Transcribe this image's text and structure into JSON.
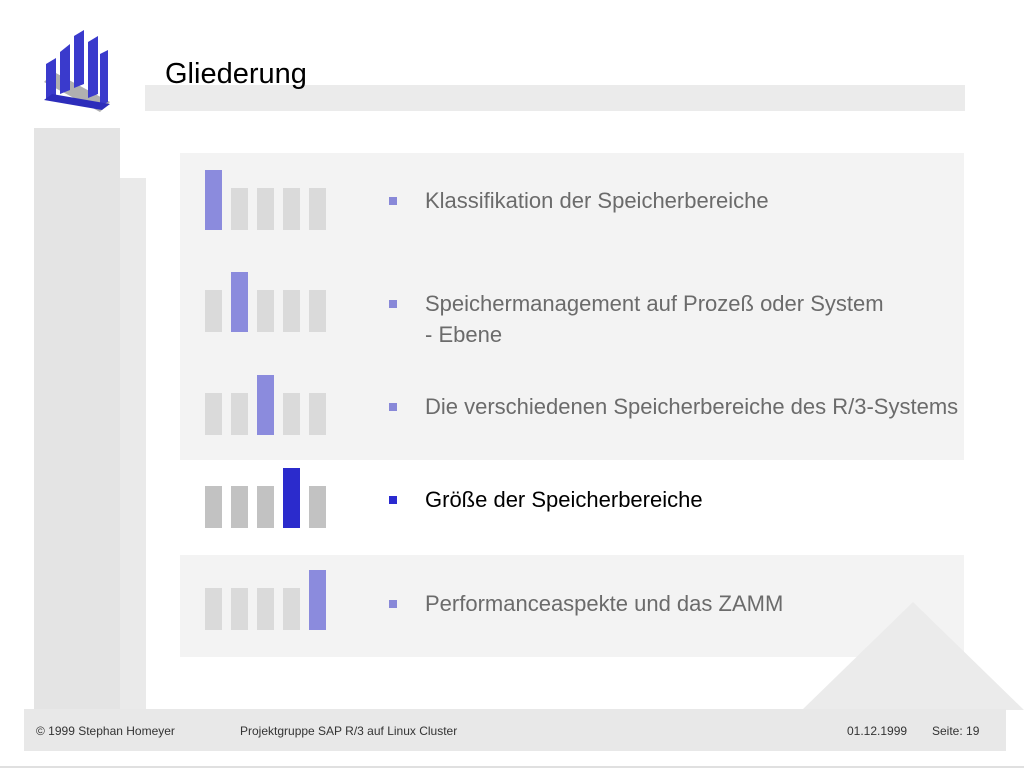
{
  "slide": {
    "title": "Gliederung"
  },
  "items": [
    {
      "text": "Klassifikation der Speicherbereiche",
      "active": false
    },
    {
      "text": "Speichermanagement auf Prozeß oder System - Ebene",
      "active": false
    },
    {
      "text": "Die verschiedenen Speicherbereiche des R/3-Systems",
      "active": false
    },
    {
      "text": "Größe der Speicherbereiche",
      "active": true
    },
    {
      "text": "Performanceaspekte und das ZAMM",
      "active": false
    }
  ],
  "footer": {
    "copyright": "© 1999 Stephan Homeyer",
    "project": "Projektgruppe SAP R/3 auf Linux Cluster",
    "date": "01.12.1999",
    "page": "Seite: 19"
  },
  "colors": {
    "highlight": "#8b8bdd",
    "highlight_active": "#2b2bcc",
    "bar_inactive": "#dadada",
    "bar_active_row": "#c2c2c2",
    "logo": "#3a3acc"
  }
}
